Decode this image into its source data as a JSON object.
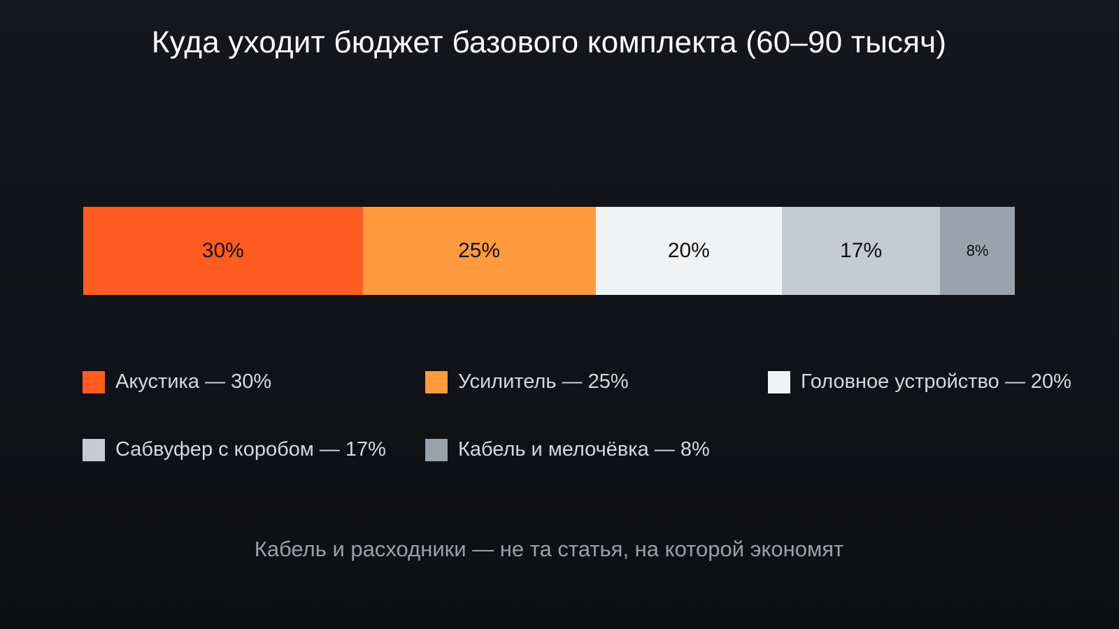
{
  "chart_data": {
    "type": "bar",
    "orientation": "horizontal-stacked",
    "title": "Куда уходит бюджет базового комплекта (60–90 тысяч)",
    "subtitle": "Кабель и расходники — не та статья, на которой экономят",
    "unit": "%",
    "legend_position": "bottom",
    "grid": false,
    "categories": [
      "Акустика",
      "Усилитель",
      "Головное устройство",
      "Сабвуфер с коробом",
      "Кабель и мелочёвка"
    ],
    "values": [
      30,
      25,
      20,
      17,
      8
    ],
    "segment_labels": [
      "30%",
      "25%",
      "20%",
      "17%",
      "8%"
    ],
    "legend_labels": [
      "Акустика — 30%",
      "Усилитель — 25%",
      "Головное устройство — 20%",
      "Сабвуфер с коробом — 17%",
      "Кабель и мелочёвка — 8%"
    ],
    "colors": [
      "#ff5c22",
      "#ff9a3e",
      "#f1f2f4",
      "#c6cad1",
      "#9ba1ad"
    ]
  }
}
